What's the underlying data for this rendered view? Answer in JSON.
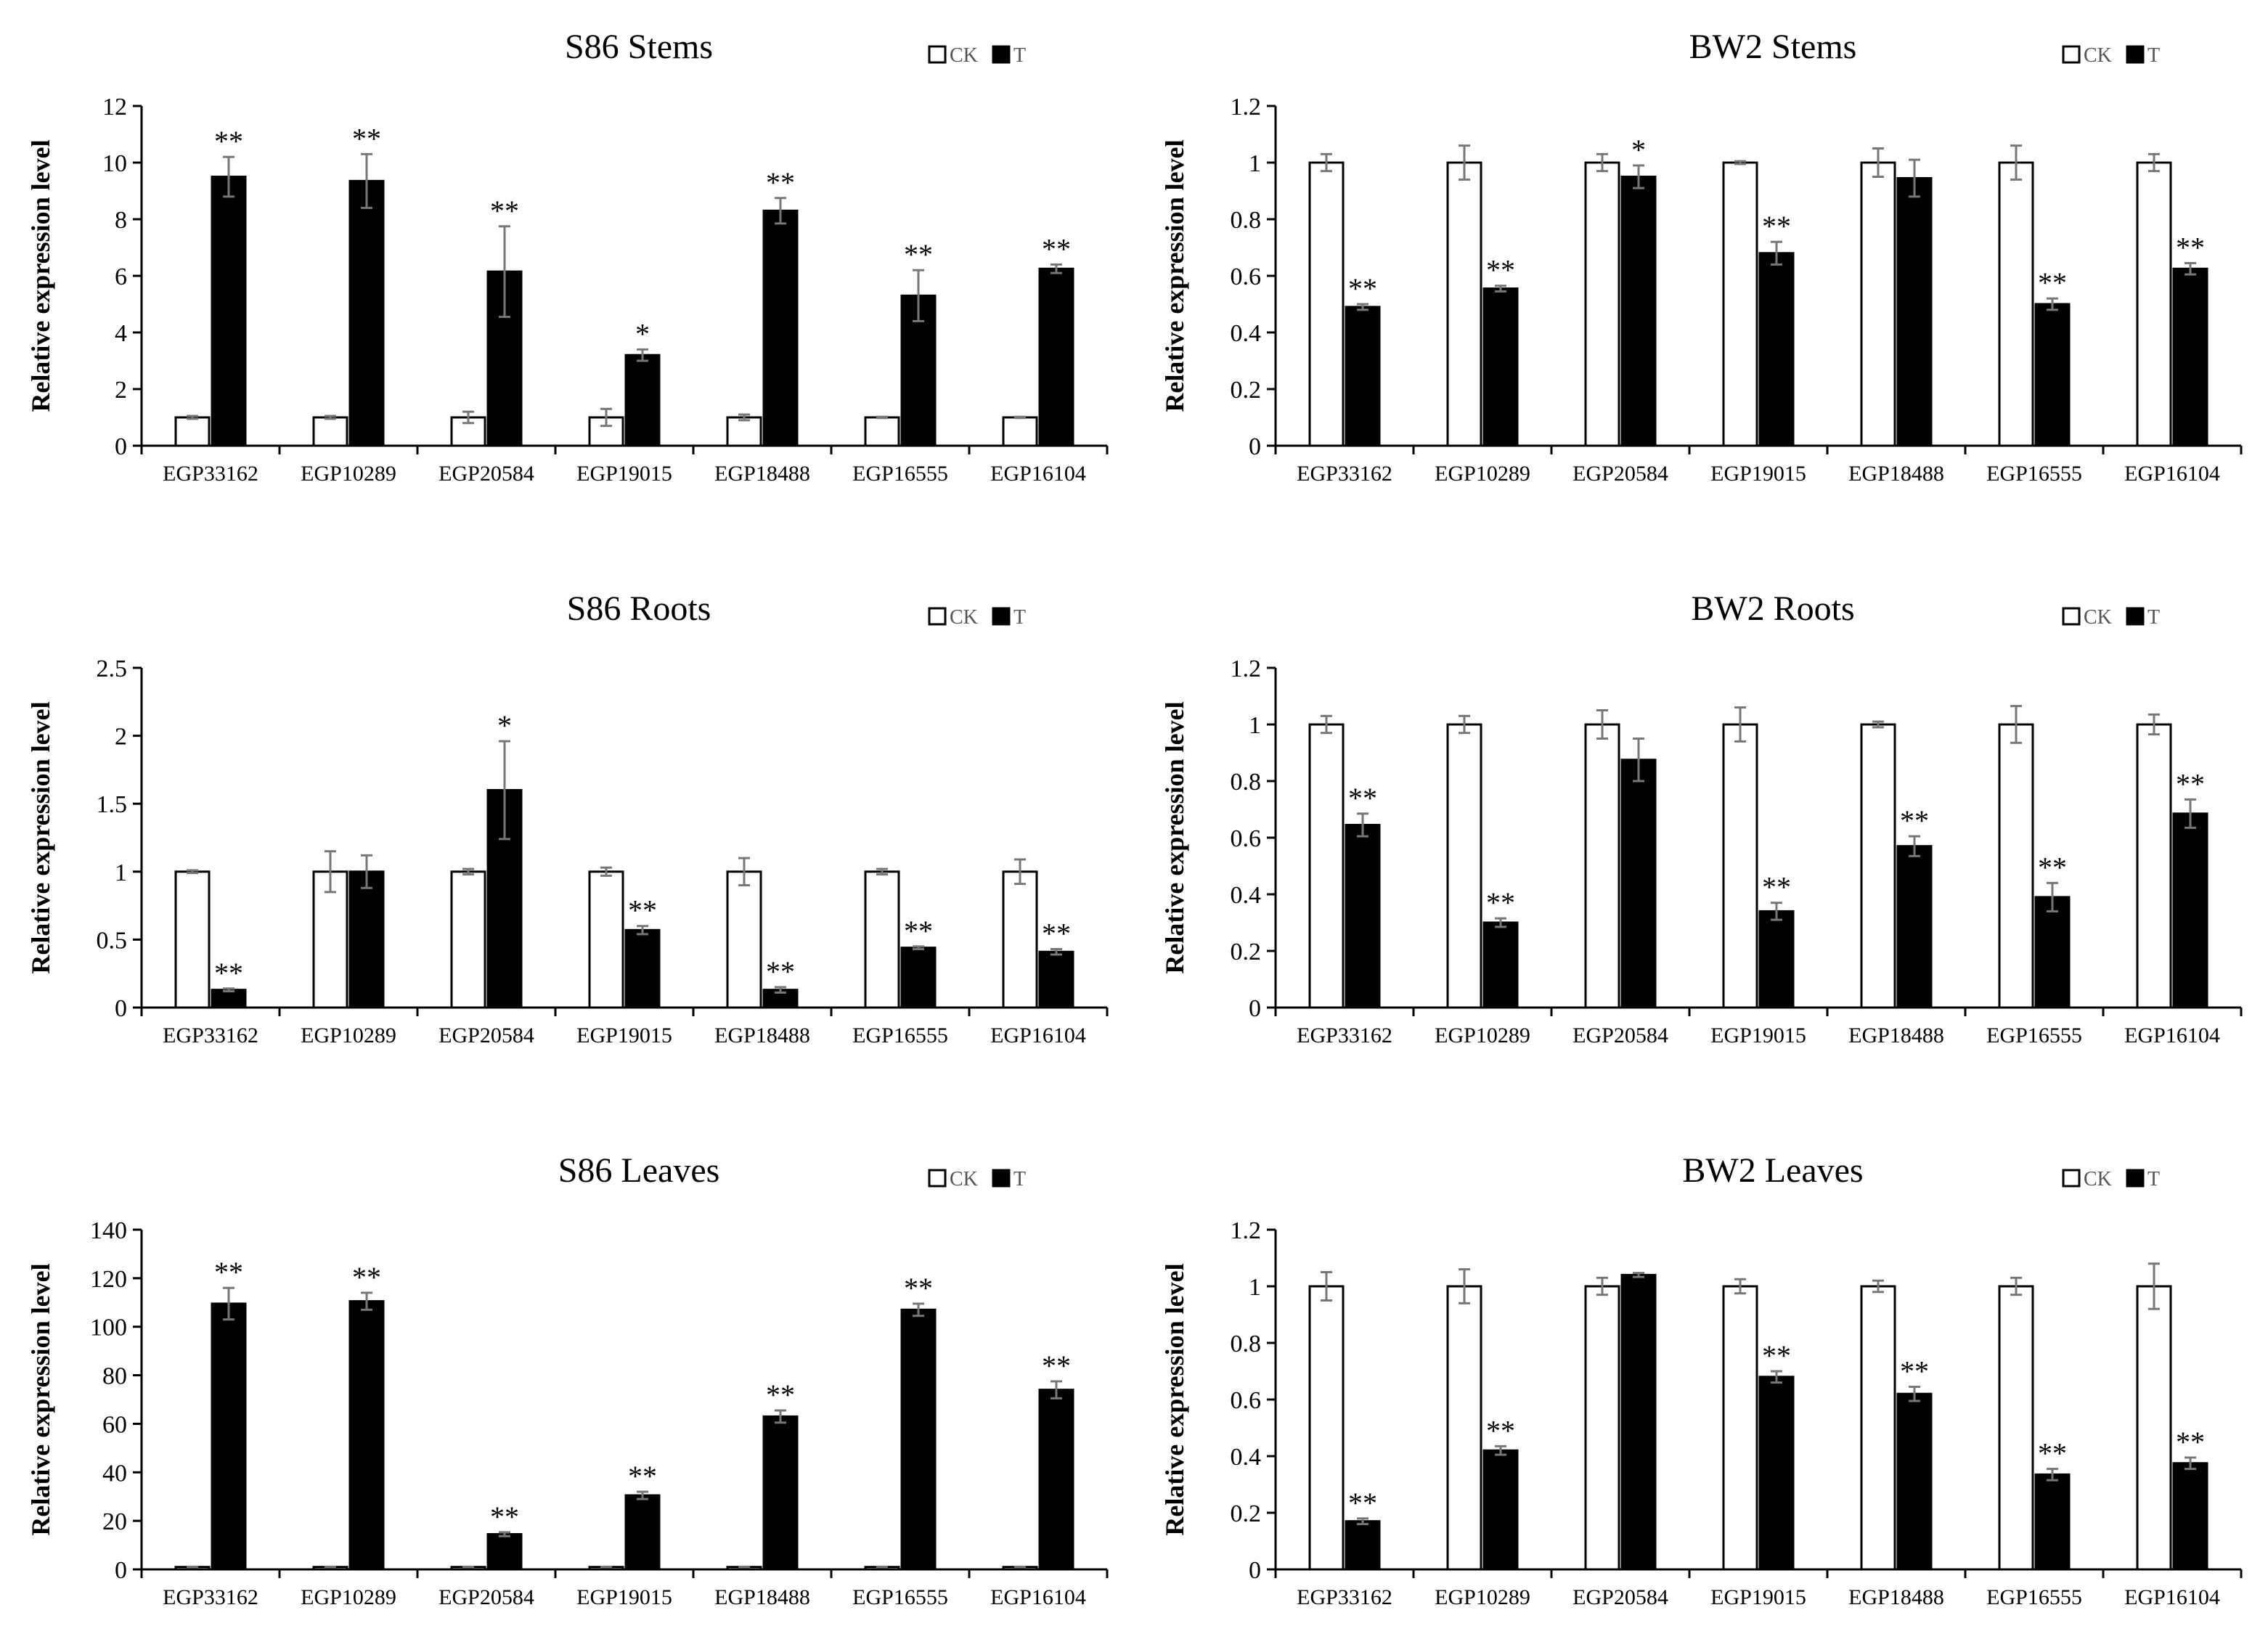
{
  "chart_data": [
    {
      "type": "bar",
      "title": "S86 Stems",
      "ylabel": "Relative expression level",
      "categories": [
        "EGP33162",
        "EGP10289",
        "EGP20584",
        "EGP19015",
        "EGP18488",
        "EGP16555",
        "EGP16104"
      ],
      "ylim": [
        0,
        12
      ],
      "yticks": [
        0,
        2,
        4,
        6,
        8,
        10,
        12
      ],
      "series": [
        {
          "name": "CK",
          "values": [
            1,
            1,
            1,
            1,
            1,
            1,
            1
          ],
          "errors": [
            0.05,
            0.05,
            0.2,
            0.3,
            0.1,
            0.02,
            0.02
          ]
        },
        {
          "name": "T",
          "values": [
            9.5,
            9.35,
            6.15,
            3.2,
            8.3,
            5.3,
            6.25
          ],
          "errors": [
            0.7,
            0.95,
            1.6,
            0.2,
            0.45,
            0.9,
            0.15
          ],
          "significance": [
            "**",
            "**",
            "**",
            "*",
            "**",
            "**",
            "**"
          ]
        }
      ]
    },
    {
      "type": "bar",
      "title": "BW2 Stems",
      "ylabel": "Relative expression level",
      "categories": [
        "EGP33162",
        "EGP10289",
        "EGP20584",
        "EGP19015",
        "EGP18488",
        "EGP16555",
        "EGP16104"
      ],
      "ylim": [
        0,
        1.2
      ],
      "yticks": [
        0,
        0.2,
        0.4,
        0.6,
        0.8,
        1,
        1.2
      ],
      "series": [
        {
          "name": "CK",
          "values": [
            1,
            1,
            1,
            1,
            1,
            1,
            1
          ],
          "errors": [
            0.03,
            0.06,
            0.03,
            0.005,
            0.05,
            0.06,
            0.03
          ]
        },
        {
          "name": "T",
          "values": [
            0.49,
            0.555,
            0.95,
            0.68,
            0.945,
            0.5,
            0.625
          ],
          "errors": [
            0.01,
            0.01,
            0.04,
            0.04,
            0.065,
            0.02,
            0.02
          ],
          "significance": [
            "**",
            "**",
            "*",
            "**",
            "",
            "**",
            "**"
          ]
        }
      ]
    },
    {
      "type": "bar",
      "title": "S86 Roots",
      "ylabel": "Relative expression level",
      "categories": [
        "EGP33162",
        "EGP10289",
        "EGP20584",
        "EGP19015",
        "EGP18488",
        "EGP16555",
        "EGP16104"
      ],
      "ylim": [
        0,
        2.5
      ],
      "yticks": [
        0,
        0.5,
        1,
        1.5,
        2,
        2.5
      ],
      "series": [
        {
          "name": "CK",
          "values": [
            1,
            1,
            1,
            1,
            1,
            1,
            1
          ],
          "errors": [
            0.01,
            0.15,
            0.02,
            0.03,
            0.1,
            0.02,
            0.09
          ]
        },
        {
          "name": "T",
          "values": [
            0.13,
            1.0,
            1.6,
            0.57,
            0.13,
            0.44,
            0.41
          ],
          "errors": [
            0.01,
            0.12,
            0.36,
            0.03,
            0.02,
            0.01,
            0.02
          ],
          "significance": [
            "**",
            "",
            "*",
            "**",
            "**",
            "**",
            "**"
          ]
        }
      ]
    },
    {
      "type": "bar",
      "title": "BW2 Roots",
      "ylabel": "Relative expression level",
      "categories": [
        "EGP33162",
        "EGP10289",
        "EGP20584",
        "EGP19015",
        "EGP18488",
        "EGP16555",
        "EGP16104"
      ],
      "ylim": [
        0,
        1.2
      ],
      "yticks": [
        0,
        0.2,
        0.4,
        0.6,
        0.8,
        1,
        1.2
      ],
      "series": [
        {
          "name": "CK",
          "values": [
            1,
            1,
            1,
            1,
            1,
            1,
            1
          ],
          "errors": [
            0.03,
            0.03,
            0.05,
            0.06,
            0.01,
            0.065,
            0.035
          ]
        },
        {
          "name": "T",
          "values": [
            0.645,
            0.3,
            0.875,
            0.34,
            0.57,
            0.39,
            0.685
          ],
          "errors": [
            0.04,
            0.015,
            0.075,
            0.03,
            0.035,
            0.05,
            0.05
          ],
          "significance": [
            "**",
            "**",
            "",
            "**",
            "**",
            "**",
            "**"
          ]
        }
      ]
    },
    {
      "type": "bar",
      "title": "S86 Leaves",
      "ylabel": "Relative expression level",
      "categories": [
        "EGP33162",
        "EGP10289",
        "EGP20584",
        "EGP19015",
        "EGP18488",
        "EGP16555",
        "EGP16104"
      ],
      "ylim": [
        0,
        140
      ],
      "yticks": [
        0,
        20,
        40,
        60,
        80,
        100,
        120,
        140
      ],
      "series": [
        {
          "name": "CK",
          "values": [
            1,
            1,
            1,
            1,
            1,
            1,
            1
          ],
          "errors": [
            0.1,
            0.1,
            0.1,
            0.1,
            0.1,
            0.1,
            0.1
          ]
        },
        {
          "name": "T",
          "values": [
            109.5,
            110.5,
            14.5,
            30.5,
            63,
            107,
            74
          ],
          "errors": [
            6.5,
            3.5,
            0.8,
            1.5,
            2.5,
            2.5,
            3.5
          ],
          "significance": [
            "**",
            "**",
            "**",
            "**",
            "**",
            "**",
            "**"
          ]
        }
      ]
    },
    {
      "type": "bar",
      "title": "BW2 Leaves",
      "ylabel": "Relative expression level",
      "categories": [
        "EGP33162",
        "EGP10289",
        "EGP20584",
        "EGP19015",
        "EGP18488",
        "EGP16555",
        "EGP16104"
      ],
      "ylim": [
        0,
        1.2
      ],
      "yticks": [
        0,
        0.2,
        0.4,
        0.6,
        0.8,
        1,
        1.2
      ],
      "series": [
        {
          "name": "CK",
          "values": [
            1,
            1,
            1,
            1,
            1,
            1,
            1
          ],
          "errors": [
            0.05,
            0.06,
            0.03,
            0.025,
            0.02,
            0.03,
            0.08
          ]
        },
        {
          "name": "T",
          "values": [
            0.17,
            0.42,
            1.04,
            0.68,
            0.62,
            0.335,
            0.375
          ],
          "errors": [
            0.01,
            0.015,
            0.007,
            0.02,
            0.025,
            0.02,
            0.02
          ],
          "significance": [
            "**",
            "**",
            "",
            "**",
            "**",
            "**",
            "**"
          ]
        }
      ]
    }
  ]
}
